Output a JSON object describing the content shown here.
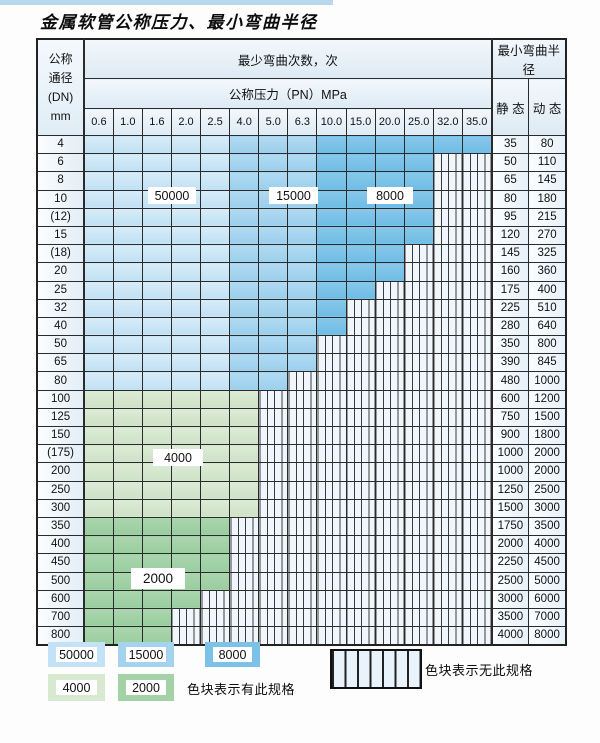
{
  "page": {
    "title": "金属软管公称压力、最小弯曲半径"
  },
  "table": {
    "dn_header_lines": [
      "公称",
      "通径",
      "(DN)",
      "mm"
    ],
    "bend_cycles_header": "最少弯曲次数，次",
    "bend_radius_header": "最小弯曲半径",
    "pressure_header": "公称压力（PN）MPa",
    "pressure_columns": [
      "0.6",
      "1.0",
      "1.6",
      "2.0",
      "2.5",
      "4.0",
      "5.0",
      "6.3",
      "10.0",
      "15.0",
      "20.0",
      "25.0",
      "32.0",
      "35.0"
    ],
    "static_header": "静 态",
    "dynamic_header": "动 态",
    "rows": [
      {
        "dn": "4",
        "shade": "blue",
        "colored": 14,
        "static": "35",
        "dynamic": "80"
      },
      {
        "dn": "6",
        "shade": "blue",
        "colored": 12,
        "static": "50",
        "dynamic": "110"
      },
      {
        "dn": "8",
        "shade": "blue",
        "colored": 12,
        "static": "65",
        "dynamic": "145"
      },
      {
        "dn": "10",
        "shade": "blue",
        "colored": 12,
        "static": "80",
        "dynamic": "180"
      },
      {
        "dn": "(12)",
        "shade": "blue",
        "colored": 12,
        "static": "95",
        "dynamic": "215"
      },
      {
        "dn": "15",
        "shade": "blue",
        "colored": 12,
        "static": "120",
        "dynamic": "270"
      },
      {
        "dn": "(18)",
        "shade": "blue",
        "colored": 11,
        "static": "145",
        "dynamic": "325"
      },
      {
        "dn": "20",
        "shade": "blue",
        "colored": 11,
        "static": "160",
        "dynamic": "360"
      },
      {
        "dn": "25",
        "shade": "blue",
        "colored": 10,
        "static": "175",
        "dynamic": "400"
      },
      {
        "dn": "32",
        "shade": "blue",
        "colored": 9,
        "static": "225",
        "dynamic": "510"
      },
      {
        "dn": "40",
        "shade": "blue",
        "colored": 9,
        "static": "280",
        "dynamic": "640"
      },
      {
        "dn": "50",
        "shade": "blue",
        "colored": 8,
        "static": "350",
        "dynamic": "800"
      },
      {
        "dn": "65",
        "shade": "blue",
        "colored": 8,
        "static": "390",
        "dynamic": "845"
      },
      {
        "dn": "80",
        "shade": "blue",
        "colored": 7,
        "static": "480",
        "dynamic": "1000"
      },
      {
        "dn": "100",
        "shade": "green4000",
        "colored": 6,
        "static": "600",
        "dynamic": "1200"
      },
      {
        "dn": "125",
        "shade": "green4000",
        "colored": 6,
        "static": "750",
        "dynamic": "1500"
      },
      {
        "dn": "150",
        "shade": "green4000",
        "colored": 6,
        "static": "900",
        "dynamic": "1800"
      },
      {
        "dn": "(175)",
        "shade": "green4000",
        "colored": 6,
        "static": "1000",
        "dynamic": "2000"
      },
      {
        "dn": "200",
        "shade": "green4000",
        "colored": 6,
        "static": "1000",
        "dynamic": "2000"
      },
      {
        "dn": "250",
        "shade": "green4000",
        "colored": 6,
        "static": "1250",
        "dynamic": "2500"
      },
      {
        "dn": "300",
        "shade": "green4000",
        "colored": 6,
        "static": "1500",
        "dynamic": "3000"
      },
      {
        "dn": "350",
        "shade": "green2000",
        "colored": 5,
        "static": "1750",
        "dynamic": "3500"
      },
      {
        "dn": "400",
        "shade": "green2000",
        "colored": 5,
        "static": "2000",
        "dynamic": "4000"
      },
      {
        "dn": "450",
        "shade": "green2000",
        "colored": 5,
        "static": "2250",
        "dynamic": "4500"
      },
      {
        "dn": "500",
        "shade": "green2000",
        "colored": 5,
        "static": "2500",
        "dynamic": "5000"
      },
      {
        "dn": "600",
        "shade": "green2000",
        "colored": 4,
        "static": "3000",
        "dynamic": "6000"
      },
      {
        "dn": "700",
        "shade": "green2000",
        "colored": 3,
        "static": "3500",
        "dynamic": "7000"
      },
      {
        "dn": "800",
        "shade": "green2000",
        "colored": 3,
        "static": "4000",
        "dynamic": "8000"
      }
    ]
  },
  "legend": {
    "swatches": [
      {
        "label": "50000",
        "color": "#c3e2f5"
      },
      {
        "label": "15000",
        "color": "#a4d3ee"
      },
      {
        "label": "8000",
        "color": "#7cc2e8"
      },
      {
        "label": "4000",
        "color": "#d7e9d1"
      },
      {
        "label": "2000",
        "color": "#a3d2a7"
      }
    ],
    "has_spec_text": "色块表示有此规格",
    "no_spec_text": "色块表示无此规格"
  },
  "colors": {
    "cycles_50000": "#c3e2f5",
    "cycles_15000": "#a4d3ee",
    "cycles_8000": "#7cc2e8",
    "cycles_4000": "#d7e9d1",
    "cycles_2000": "#a3d2a7",
    "grid": "#2b2b2b",
    "label_cell": "#e7f1f8"
  }
}
